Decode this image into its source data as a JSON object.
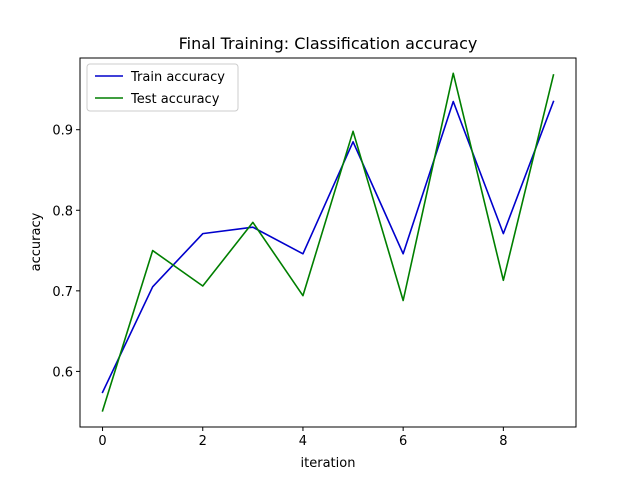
{
  "chart_data": {
    "type": "line",
    "title": "Final Training: Classification accuracy",
    "xlabel": "iteration",
    "ylabel": "accuracy",
    "x": [
      0,
      1,
      2,
      3,
      4,
      5,
      6,
      7,
      8,
      9
    ],
    "xlim": [
      -0.45,
      9.45
    ],
    "ylim": [
      0.531,
      0.989
    ],
    "xticks": [
      0,
      2,
      4,
      6,
      8
    ],
    "yticks": [
      0.6,
      0.7,
      0.8,
      0.9
    ],
    "xtick_labels": [
      "0",
      "2",
      "4",
      "6",
      "8"
    ],
    "ytick_labels": [
      "0.6",
      "0.7",
      "0.8",
      "0.9"
    ],
    "grid": false,
    "legend_position": "top-left",
    "series": [
      {
        "name": "Train accuracy",
        "color": "#0000cc",
        "values": [
          0.574,
          0.705,
          0.771,
          0.779,
          0.746,
          0.885,
          0.746,
          0.935,
          0.771,
          0.935
        ]
      },
      {
        "name": "Test accuracy",
        "color": "#007f00",
        "values": [
          0.551,
          0.75,
          0.706,
          0.785,
          0.694,
          0.898,
          0.688,
          0.97,
          0.713,
          0.968
        ]
      }
    ]
  }
}
